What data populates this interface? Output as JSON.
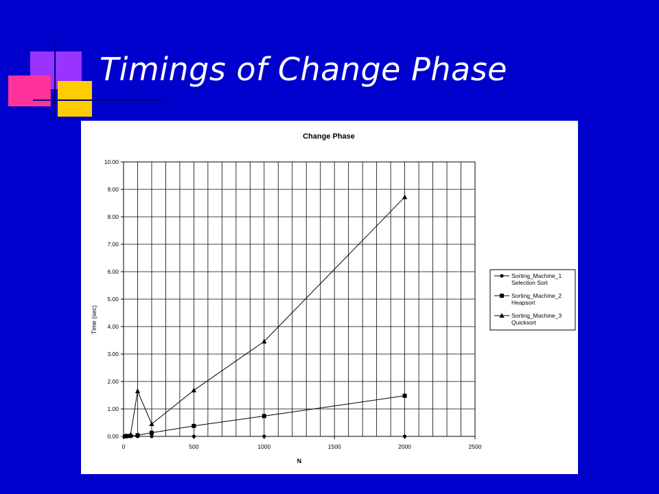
{
  "slide": {
    "title": "Timings of Change Phase"
  },
  "colors": {
    "background": "#0000cc",
    "title_text": "#ffffff",
    "deco_purple": "#9933ff",
    "deco_pink": "#ff3399",
    "deco_yellow": "#ffcc00"
  },
  "chart_data": {
    "type": "line",
    "title": "Change Phase",
    "xlabel": "N",
    "ylabel": "Time (sec)",
    "xlim": [
      0,
      2500
    ],
    "ylim": [
      0,
      10
    ],
    "xticks": [
      0,
      500,
      1000,
      1500,
      2000,
      2500
    ],
    "xtick_labels": [
      "0",
      "500",
      "1000",
      "1500",
      "2000",
      "2500"
    ],
    "yticks": [
      0,
      1,
      2,
      3,
      4,
      5,
      6,
      7,
      8,
      9,
      10
    ],
    "ytick_labels": [
      "0.00",
      "1.00",
      "2.00",
      "3.00",
      "4.00",
      "5.00",
      "6.00",
      "7.00",
      "8.00",
      "9.00",
      "10.00"
    ],
    "grid": true,
    "legend_position": "right",
    "series": [
      {
        "name": "Sorting_Machine_1 Selection Sort",
        "legend_lines": [
          "Sorting_Machine_1",
          "Selection Sort"
        ],
        "marker": "circle",
        "x": [
          10,
          20,
          50,
          100,
          200,
          500,
          1000,
          2000
        ],
        "y": [
          0,
          0,
          0,
          0,
          0,
          0,
          0,
          0
        ]
      },
      {
        "name": "Sorting_Machine_2 Heapsort",
        "legend_lines": [
          "Sorting_Machine_2",
          "Heapsort"
        ],
        "marker": "square",
        "x": [
          10,
          20,
          50,
          100,
          200,
          500,
          1000,
          2000
        ],
        "y": [
          0,
          0.01,
          0.02,
          0.04,
          0.13,
          0.38,
          0.74,
          1.48
        ]
      },
      {
        "name": "Sorting_Machine_3 Quicksort",
        "legend_lines": [
          "Sorting_Machine_3",
          "Quicksort"
        ],
        "marker": "triangle",
        "x": [
          10,
          20,
          50,
          100,
          200,
          500,
          1000,
          2000
        ],
        "y": [
          0,
          0.02,
          0.06,
          1.65,
          0.45,
          1.68,
          3.46,
          8.72
        ]
      }
    ]
  }
}
